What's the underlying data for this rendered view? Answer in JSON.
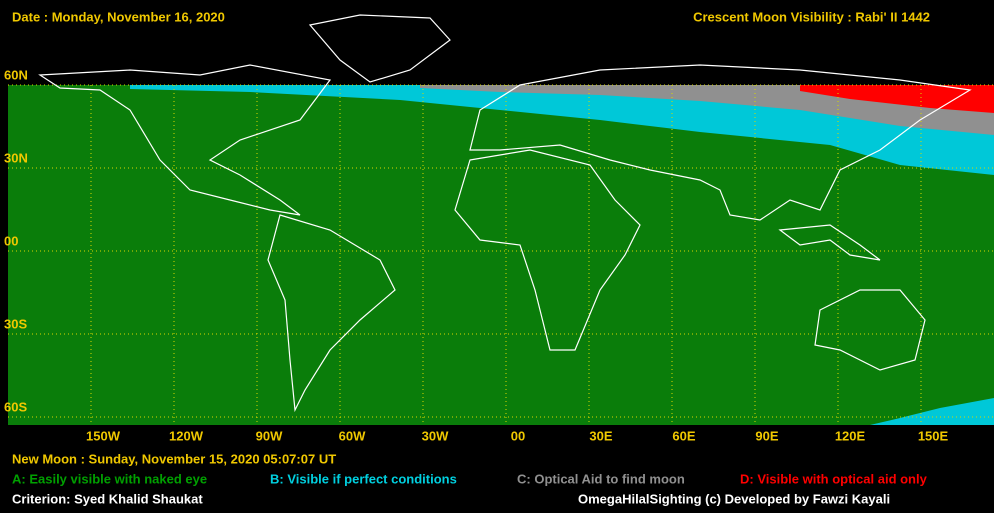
{
  "header": {
    "date": "Date : Monday, November 16, 2020",
    "title": "Crescent Moon Visibility : Rabi' II  1442"
  },
  "map": {
    "lat_labels": [
      "60N",
      "30N",
      "00",
      "30S",
      "60S"
    ],
    "lon_labels": [
      "150W",
      "120W",
      "90W",
      "60W",
      "30W",
      "00",
      "30E",
      "60E",
      "90E",
      "120E",
      "150E"
    ]
  },
  "footer": {
    "new_moon": "New Moon : Sunday, November 15, 2020  05:07:07  UT",
    "legend": [
      "A: Easily visible with naked eye",
      "B: Visible if perfect conditions",
      "C: Optical Aid to find moon",
      "D: Visible with optical aid only"
    ],
    "criterion": "Criterion: Syed Khalid Shaukat",
    "credit": "OmegaHilalSighting  (c)  Developed by Fawzi Kayali"
  }
}
